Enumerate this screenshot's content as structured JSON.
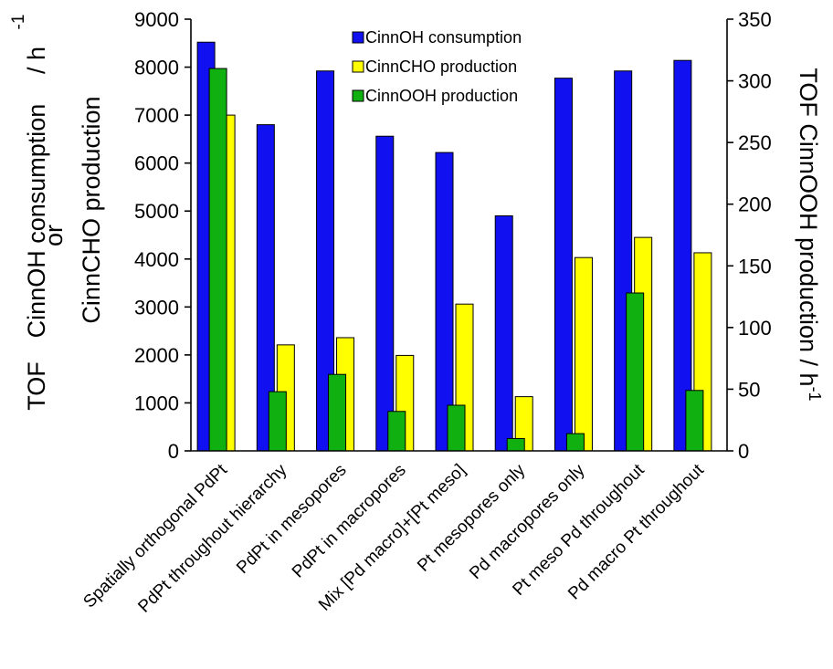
{
  "chart_data": {
    "type": "bar",
    "categories": [
      "Spatially orthogonal PdPt",
      "PdPt throughout hierarchy",
      "PdPt in mesopores",
      "PdPt in macropores",
      "Mix [Pd macro]+[Pt meso]",
      "Pt mesopores only",
      "Pd macropores only",
      "Pt meso Pd throughout",
      "Pd macro Pt throughout"
    ],
    "series": [
      {
        "name": "CinnOH consumption",
        "axis": "left",
        "color": "#1010f0",
        "values": [
          8520,
          6800,
          7920,
          6560,
          6220,
          4900,
          7770,
          7920,
          8140
        ]
      },
      {
        "name": "CinnCHO production",
        "axis": "left",
        "color": "#ffff00",
        "values": [
          7000,
          2210,
          2360,
          1990,
          3060,
          1130,
          4030,
          4450,
          4130
        ]
      },
      {
        "name": "CinnOOH production",
        "axis": "right",
        "color": "#10b010",
        "values": [
          310,
          48,
          62,
          32,
          37,
          10,
          14,
          128,
          49
        ]
      }
    ],
    "y_left": {
      "ylim": [
        0,
        9000
      ],
      "ticks": [
        "0",
        "1000",
        "2000",
        "3000",
        "4000",
        "5000",
        "6000",
        "7000",
        "8000",
        "9000"
      ],
      "label_lines": [
        "TOF",
        "CinnOH consumption",
        "or",
        "CinnCHO production",
        "/ h",
        "-1"
      ]
    },
    "y_right": {
      "ylim": [
        0,
        350
      ],
      "ticks": [
        "0",
        "50",
        "100",
        "150",
        "200",
        "250",
        "300",
        "350"
      ],
      "label": "TOF CinnOOH production / h",
      "label_sup": "-1"
    },
    "legend": {
      "position": "top-center"
    },
    "grid": false
  }
}
